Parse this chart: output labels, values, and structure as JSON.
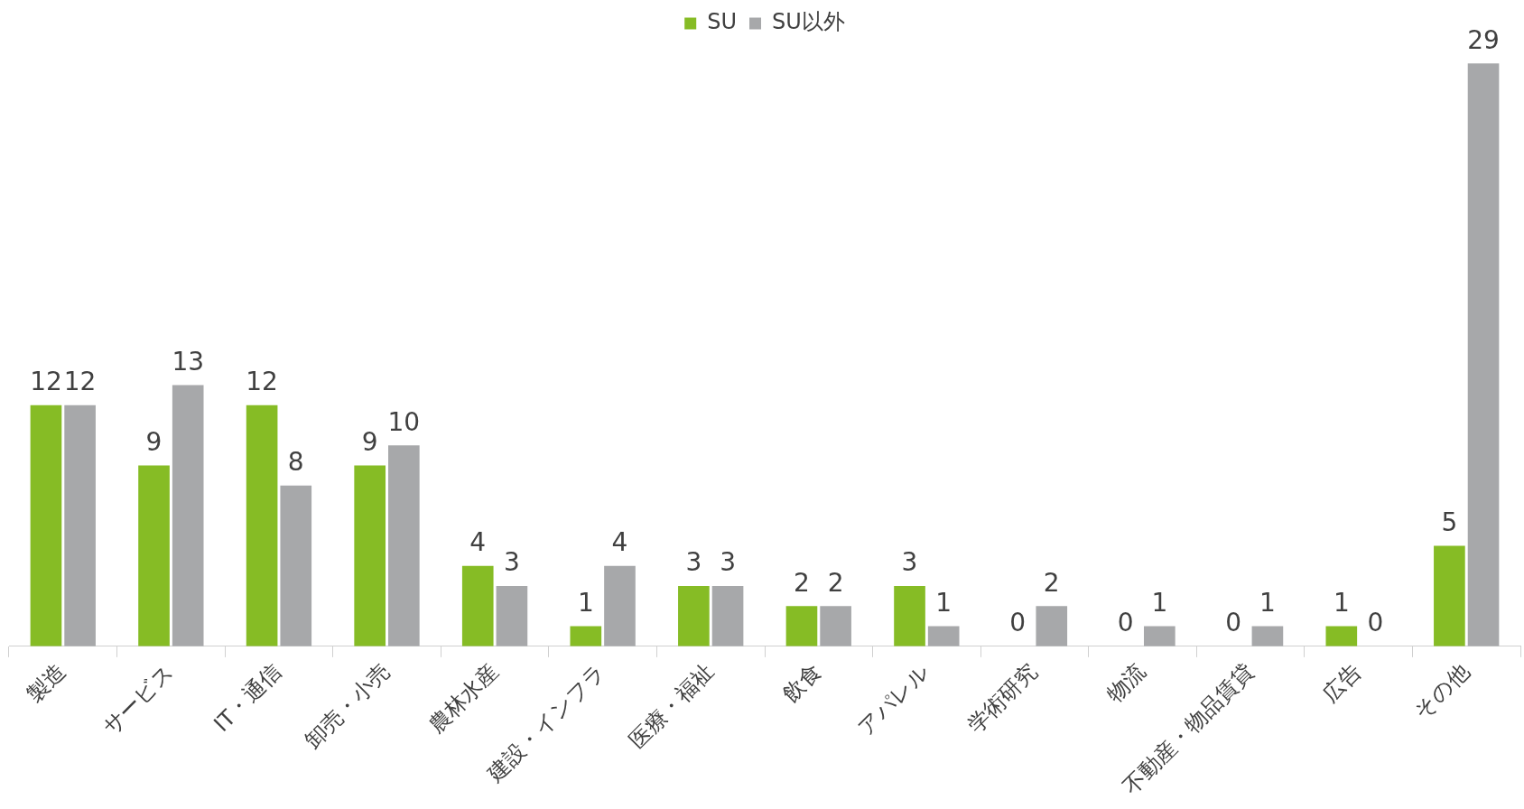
{
  "chart_data": {
    "type": "bar",
    "categories": [
      "製造",
      "サービス",
      "IT・通信",
      "卸売・小売",
      "農林水産",
      "建設・インフラ",
      "医療・福祉",
      "飲食",
      "アパレル",
      "学術研究",
      "物流",
      "不動産・物品賃貸",
      "広告",
      "その他"
    ],
    "series": [
      {
        "name": "SU",
        "color": "#86bc25",
        "values": [
          12,
          9,
          12,
          9,
          4,
          1,
          3,
          2,
          3,
          0,
          0,
          0,
          1,
          5
        ]
      },
      {
        "name": "SU以外",
        "color": "#a7a8aa",
        "values": [
          12,
          13,
          8,
          10,
          3,
          4,
          3,
          2,
          1,
          2,
          1,
          1,
          0,
          29
        ]
      }
    ],
    "data_labels": true,
    "legend": "top",
    "grid": false
  }
}
